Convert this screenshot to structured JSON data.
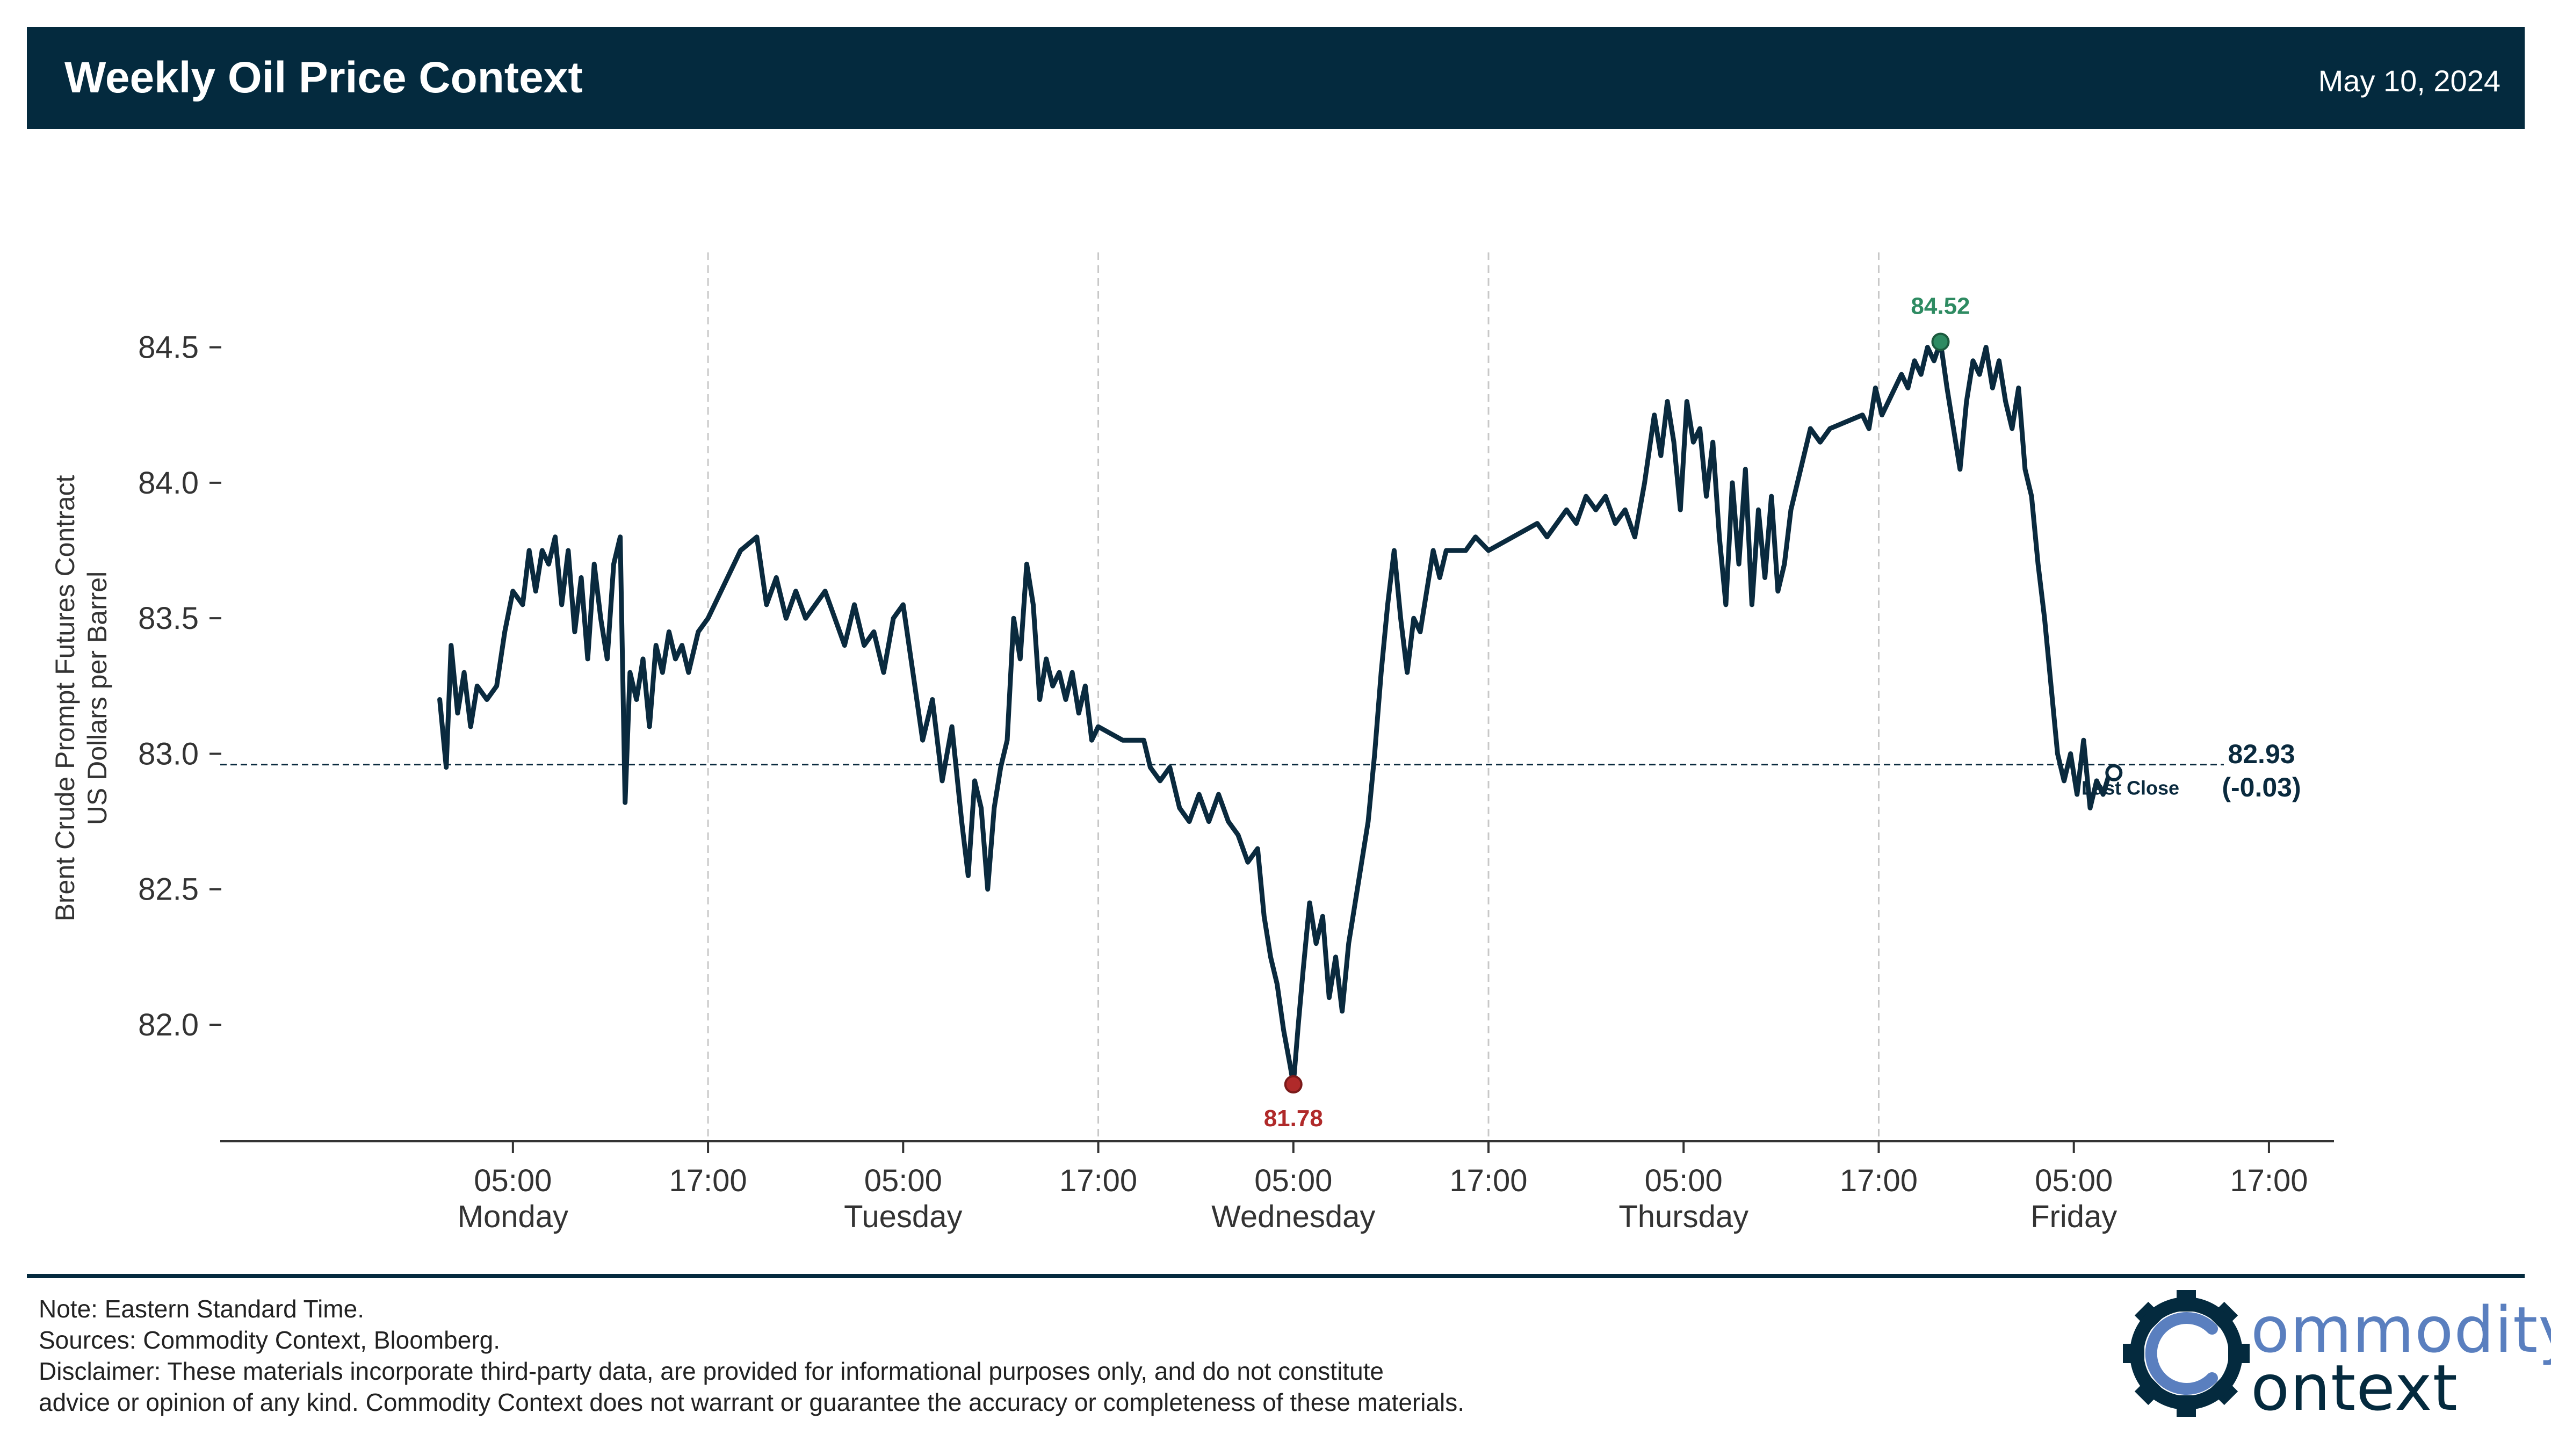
{
  "header": {
    "title": "Weekly Oil Price Context",
    "date": "May 10, 2024",
    "background": "#042a3e"
  },
  "chart_data": {
    "type": "line",
    "title": "",
    "ylabel_line1": "Brent Crude Prompt Futures Contract",
    "ylabel_line2": "US Dollars per Barrel",
    "ylim": [
      81.57,
      84.85
    ],
    "yticks": [
      82.0,
      82.5,
      83.0,
      83.5,
      84.0,
      84.5
    ],
    "ytick_labels": [
      "82.0",
      "82.5",
      "83.0",
      "83.5",
      "84.0",
      "84.5"
    ],
    "xlim_hours": [
      -18,
      85
    ],
    "xticks": [
      {
        "h": 0,
        "time": "05:00",
        "day": "Monday"
      },
      {
        "h": 12,
        "time": "17:00",
        "day": ""
      },
      {
        "h": 24,
        "time": "05:00",
        "day": "Tuesday"
      },
      {
        "h": 36,
        "time": "17:00",
        "day": ""
      },
      {
        "h": 48,
        "time": "05:00",
        "day": "Wednesday"
      },
      {
        "h": 60,
        "time": "17:00",
        "day": ""
      },
      {
        "h": 72,
        "time": "05:00",
        "day": "Thursday"
      },
      {
        "h": 84,
        "time": "17:00",
        "day": ""
      },
      {
        "h": 96,
        "time": "05:00",
        "day": "Friday"
      },
      {
        "h": 108,
        "time": "17:00",
        "day": ""
      }
    ],
    "grid_vertical_at_hours": [
      12,
      36,
      60,
      84
    ],
    "series": [
      {
        "color": "#0a2a3e",
        "points": [
          [
            -4.5,
            83.2
          ],
          [
            -4.1,
            82.95
          ],
          [
            -3.8,
            83.4
          ],
          [
            -3.4,
            83.15
          ],
          [
            -3.0,
            83.3
          ],
          [
            -2.6,
            83.1
          ],
          [
            -2.2,
            83.25
          ],
          [
            -1.6,
            83.2
          ],
          [
            -1.0,
            83.25
          ],
          [
            -0.5,
            83.45
          ],
          [
            0.0,
            83.6
          ],
          [
            0.6,
            83.55
          ],
          [
            1.0,
            83.75
          ],
          [
            1.4,
            83.6
          ],
          [
            1.8,
            83.75
          ],
          [
            2.2,
            83.7
          ],
          [
            2.6,
            83.8
          ],
          [
            3.0,
            83.55
          ],
          [
            3.4,
            83.75
          ],
          [
            3.8,
            83.45
          ],
          [
            4.2,
            83.65
          ],
          [
            4.6,
            83.35
          ],
          [
            5.0,
            83.7
          ],
          [
            5.4,
            83.5
          ],
          [
            5.8,
            83.35
          ],
          [
            6.2,
            83.7
          ],
          [
            6.6,
            83.8
          ],
          [
            6.9,
            82.82
          ],
          [
            7.2,
            83.3
          ],
          [
            7.6,
            83.2
          ],
          [
            8.0,
            83.35
          ],
          [
            8.4,
            83.1
          ],
          [
            8.8,
            83.4
          ],
          [
            9.2,
            83.3
          ],
          [
            9.6,
            83.45
          ],
          [
            10.0,
            83.35
          ],
          [
            10.4,
            83.4
          ],
          [
            10.8,
            83.3
          ],
          [
            11.4,
            83.45
          ],
          [
            12.0,
            83.5
          ],
          [
            14.0,
            83.75
          ],
          [
            15.0,
            83.8
          ],
          [
            15.6,
            83.55
          ],
          [
            16.2,
            83.65
          ],
          [
            16.8,
            83.5
          ],
          [
            17.4,
            83.6
          ],
          [
            18.0,
            83.5
          ],
          [
            18.6,
            83.55
          ],
          [
            19.2,
            83.6
          ],
          [
            19.8,
            83.5
          ],
          [
            20.4,
            83.4
          ],
          [
            21.0,
            83.55
          ],
          [
            21.6,
            83.4
          ],
          [
            22.2,
            83.45
          ],
          [
            22.8,
            83.3
          ],
          [
            23.4,
            83.5
          ],
          [
            24.0,
            83.55
          ],
          [
            24.6,
            83.3
          ],
          [
            25.2,
            83.05
          ],
          [
            25.8,
            83.2
          ],
          [
            26.4,
            82.9
          ],
          [
            27.0,
            83.1
          ],
          [
            27.6,
            82.75
          ],
          [
            28.0,
            82.55
          ],
          [
            28.4,
            82.9
          ],
          [
            28.8,
            82.8
          ],
          [
            29.2,
            82.5
          ],
          [
            29.6,
            82.8
          ],
          [
            30.0,
            82.95
          ],
          [
            30.4,
            83.05
          ],
          [
            30.8,
            83.5
          ],
          [
            31.2,
            83.35
          ],
          [
            31.6,
            83.7
          ],
          [
            32.0,
            83.55
          ],
          [
            32.4,
            83.2
          ],
          [
            32.8,
            83.35
          ],
          [
            33.2,
            83.25
          ],
          [
            33.6,
            83.3
          ],
          [
            34.0,
            83.2
          ],
          [
            34.4,
            83.3
          ],
          [
            34.8,
            83.15
          ],
          [
            35.2,
            83.25
          ],
          [
            35.6,
            83.05
          ],
          [
            36.0,
            83.1
          ],
          [
            37.5,
            83.05
          ],
          [
            38.8,
            83.05
          ],
          [
            39.2,
            82.95
          ],
          [
            39.8,
            82.9
          ],
          [
            40.4,
            82.95
          ],
          [
            41.0,
            82.8
          ],
          [
            41.6,
            82.75
          ],
          [
            42.2,
            82.85
          ],
          [
            42.8,
            82.75
          ],
          [
            43.4,
            82.85
          ],
          [
            44.0,
            82.75
          ],
          [
            44.6,
            82.7
          ],
          [
            45.2,
            82.6
          ],
          [
            45.8,
            82.65
          ],
          [
            46.2,
            82.4
          ],
          [
            46.6,
            82.25
          ],
          [
            47.0,
            82.15
          ],
          [
            47.4,
            81.98
          ],
          [
            47.8,
            81.85
          ],
          [
            48.0,
            81.78
          ],
          [
            48.3,
            82.0
          ],
          [
            48.6,
            82.2
          ],
          [
            49.0,
            82.45
          ],
          [
            49.4,
            82.3
          ],
          [
            49.8,
            82.4
          ],
          [
            50.2,
            82.1
          ],
          [
            50.6,
            82.25
          ],
          [
            51.0,
            82.05
          ],
          [
            51.4,
            82.3
          ],
          [
            51.8,
            82.45
          ],
          [
            52.2,
            82.6
          ],
          [
            52.6,
            82.75
          ],
          [
            53.0,
            83.0
          ],
          [
            53.4,
            83.3
          ],
          [
            53.8,
            83.55
          ],
          [
            54.2,
            83.75
          ],
          [
            54.6,
            83.5
          ],
          [
            55.0,
            83.3
          ],
          [
            55.4,
            83.5
          ],
          [
            55.8,
            83.45
          ],
          [
            56.2,
            83.6
          ],
          [
            56.6,
            83.75
          ],
          [
            57.0,
            83.65
          ],
          [
            57.4,
            83.75
          ],
          [
            58.0,
            83.75
          ],
          [
            58.6,
            83.75
          ],
          [
            59.2,
            83.8
          ],
          [
            60.0,
            83.75
          ],
          [
            61.5,
            83.8
          ],
          [
            63.0,
            83.85
          ],
          [
            63.6,
            83.8
          ],
          [
            64.2,
            83.85
          ],
          [
            64.8,
            83.9
          ],
          [
            65.4,
            83.85
          ],
          [
            66.0,
            83.95
          ],
          [
            66.6,
            83.9
          ],
          [
            67.2,
            83.95
          ],
          [
            67.8,
            83.85
          ],
          [
            68.4,
            83.9
          ],
          [
            69.0,
            83.8
          ],
          [
            69.6,
            84.0
          ],
          [
            70.2,
            84.25
          ],
          [
            70.6,
            84.1
          ],
          [
            71.0,
            84.3
          ],
          [
            71.4,
            84.15
          ],
          [
            71.8,
            83.9
          ],
          [
            72.2,
            84.3
          ],
          [
            72.6,
            84.15
          ],
          [
            73.0,
            84.2
          ],
          [
            73.4,
            83.95
          ],
          [
            73.8,
            84.15
          ],
          [
            74.2,
            83.8
          ],
          [
            74.6,
            83.55
          ],
          [
            75.0,
            84.0
          ],
          [
            75.4,
            83.7
          ],
          [
            75.8,
            84.05
          ],
          [
            76.2,
            83.55
          ],
          [
            76.6,
            83.9
          ],
          [
            77.0,
            83.65
          ],
          [
            77.4,
            83.95
          ],
          [
            77.8,
            83.6
          ],
          [
            78.2,
            83.7
          ],
          [
            78.6,
            83.9
          ],
          [
            79.0,
            84.0
          ],
          [
            79.4,
            84.1
          ],
          [
            79.8,
            84.2
          ],
          [
            80.4,
            84.15
          ],
          [
            81.0,
            84.2
          ],
          [
            83.0,
            84.25
          ],
          [
            83.4,
            84.2
          ],
          [
            83.8,
            84.35
          ],
          [
            84.2,
            84.25
          ],
          [
            84.6,
            84.3
          ],
          [
            85.0,
            84.35
          ],
          [
            85.4,
            84.4
          ],
          [
            85.8,
            84.35
          ],
          [
            86.2,
            84.45
          ],
          [
            86.6,
            84.4
          ],
          [
            87.0,
            84.5
          ],
          [
            87.4,
            84.45
          ],
          [
            87.8,
            84.52
          ],
          [
            88.2,
            84.35
          ],
          [
            88.6,
            84.2
          ],
          [
            89.0,
            84.05
          ],
          [
            89.4,
            84.3
          ],
          [
            89.8,
            84.45
          ],
          [
            90.2,
            84.4
          ],
          [
            90.6,
            84.5
          ],
          [
            91.0,
            84.35
          ],
          [
            91.4,
            84.45
          ],
          [
            91.8,
            84.3
          ],
          [
            92.2,
            84.2
          ],
          [
            92.6,
            84.35
          ],
          [
            93.0,
            84.05
          ],
          [
            93.4,
            83.95
          ],
          [
            93.8,
            83.7
          ],
          [
            94.2,
            83.5
          ],
          [
            94.6,
            83.25
          ],
          [
            95.0,
            83.0
          ],
          [
            95.4,
            82.9
          ],
          [
            95.8,
            83.0
          ],
          [
            96.2,
            82.85
          ],
          [
            96.6,
            83.05
          ],
          [
            97.0,
            82.8
          ],
          [
            97.4,
            82.9
          ],
          [
            97.8,
            82.85
          ],
          [
            98.2,
            82.93
          ]
        ]
      }
    ],
    "last_close": {
      "value": 82.96,
      "label": "Last Close",
      "color": "#0a2a3e"
    },
    "high": {
      "hour": 87.8,
      "value": 84.52,
      "label": "84.52",
      "color": "#2e8b62"
    },
    "low": {
      "hour": 48.0,
      "value": 81.78,
      "label": "81.78",
      "color": "#b02a2a"
    },
    "last": {
      "hour": 98.2,
      "value": 82.93,
      "label": "82.93",
      "change_label": "(-0.03)",
      "color": "#0a2a3e"
    }
  },
  "footer": {
    "note": "Note: Eastern Standard Time.",
    "sources": "Sources: Commodity Context, Bloomberg.",
    "disclaimer_1": "Disclaimer: These materials incorporate third-party data, are provided for informational purposes only, and do not constitute",
    "disclaimer_2": "advice or opinion of any kind. Commodity Context does not warrant or guarantee the accuracy or completeness of these materials."
  },
  "logo": {
    "word_top": "ommodity",
    "word_bottom": "ontext",
    "icon": "gear-c-icon",
    "color_top": "#5a7fbf",
    "color_bottom": "#042a3e"
  }
}
